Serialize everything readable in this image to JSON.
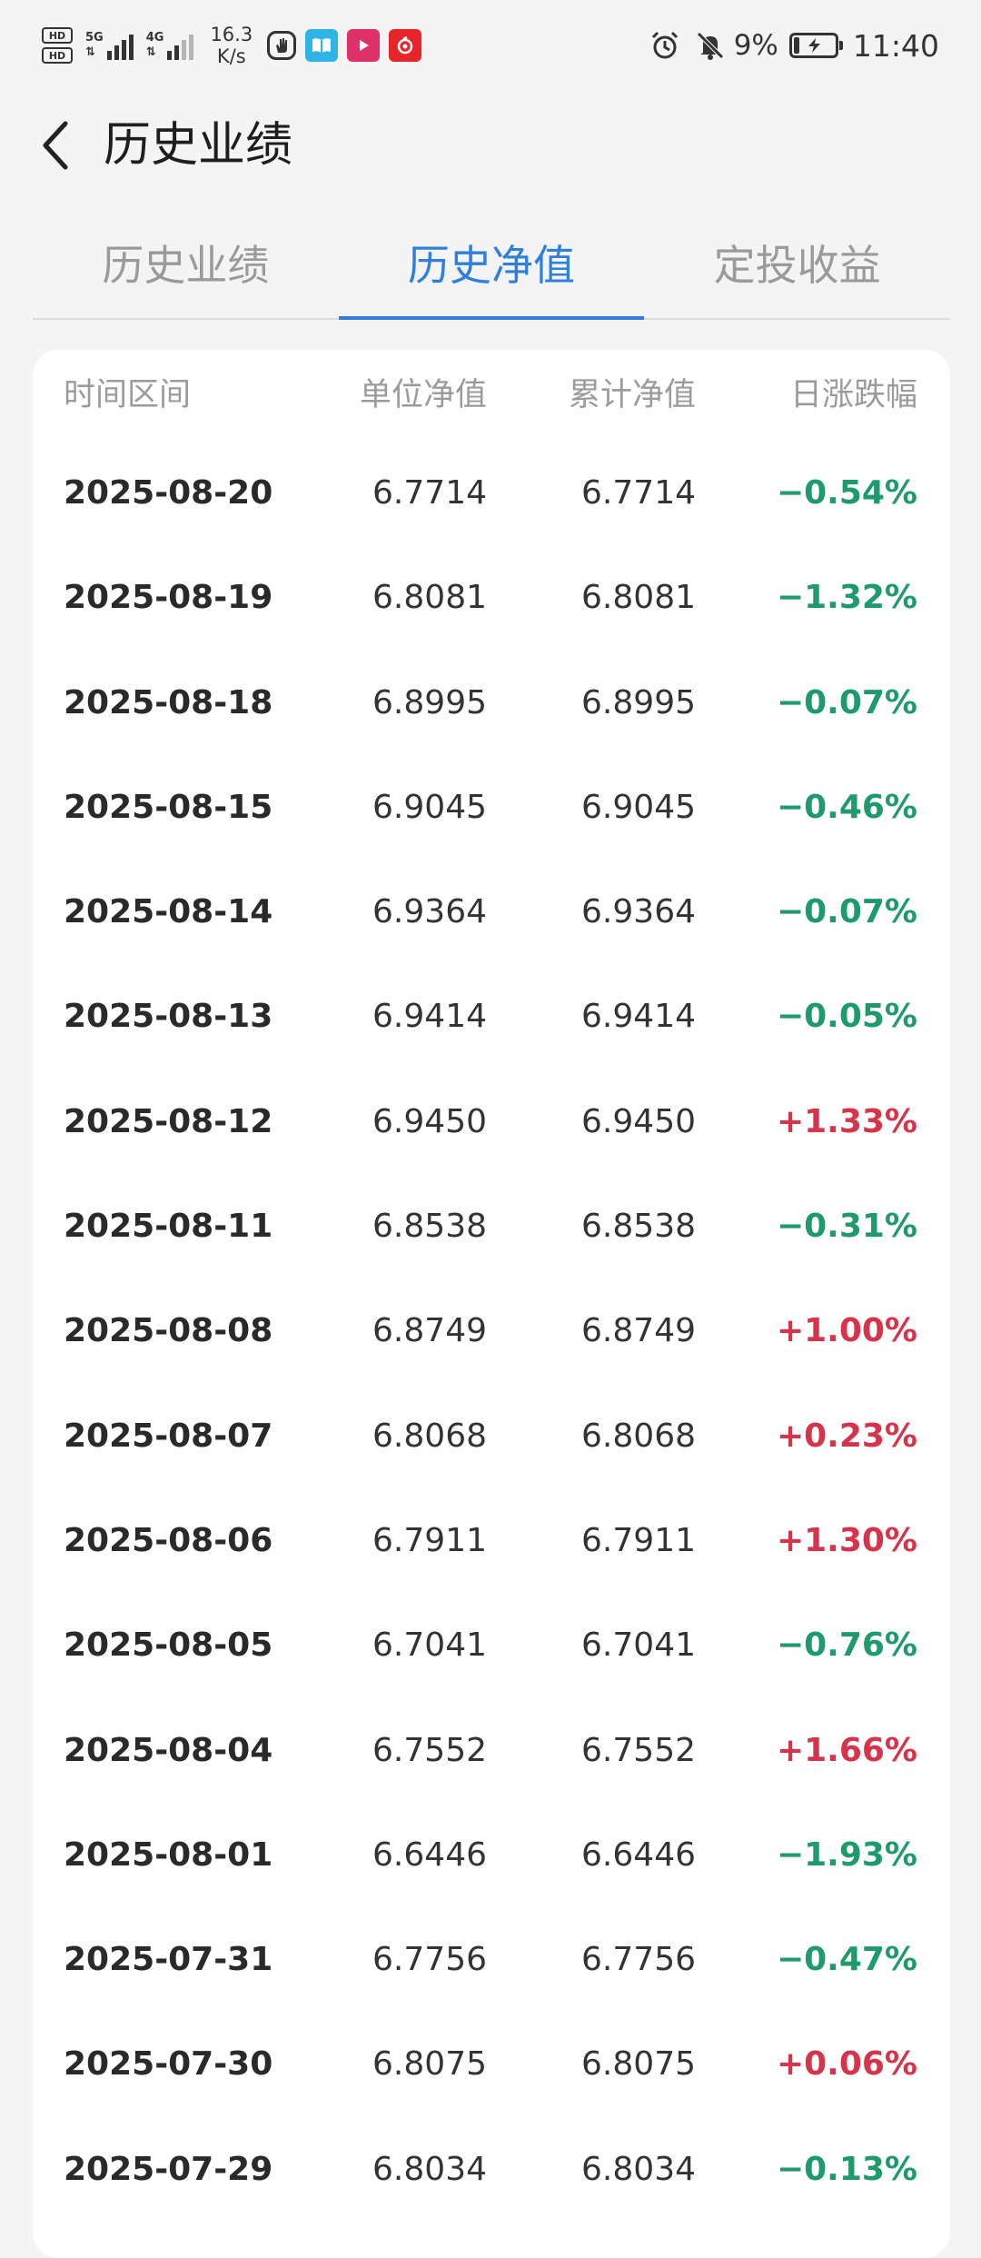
{
  "status_bar": {
    "hd1": "HD",
    "hd2": "HD",
    "net1": "5G",
    "net2": "4G",
    "speed_value": "16.3",
    "speed_unit": "K/s",
    "battery_percent": "9%",
    "time": "11:40"
  },
  "header": {
    "title": "历史业绩"
  },
  "tabs": [
    {
      "label": "历史业绩",
      "active": false
    },
    {
      "label": "历史净值",
      "active": true
    },
    {
      "label": "定投收益",
      "active": false
    }
  ],
  "table": {
    "headers": {
      "date": "时间区间",
      "unit_nav": "单位净值",
      "acc_nav": "累计净值",
      "change": "日涨跌幅"
    },
    "rows": [
      {
        "date": "2025-08-20",
        "unit": "6.7714",
        "acc": "6.7714",
        "change": "−0.54%",
        "dir": "down"
      },
      {
        "date": "2025-08-19",
        "unit": "6.8081",
        "acc": "6.8081",
        "change": "−1.32%",
        "dir": "down"
      },
      {
        "date": "2025-08-18",
        "unit": "6.8995",
        "acc": "6.8995",
        "change": "−0.07%",
        "dir": "down"
      },
      {
        "date": "2025-08-15",
        "unit": "6.9045",
        "acc": "6.9045",
        "change": "−0.46%",
        "dir": "down"
      },
      {
        "date": "2025-08-14",
        "unit": "6.9364",
        "acc": "6.9364",
        "change": "−0.07%",
        "dir": "down"
      },
      {
        "date": "2025-08-13",
        "unit": "6.9414",
        "acc": "6.9414",
        "change": "−0.05%",
        "dir": "down"
      },
      {
        "date": "2025-08-12",
        "unit": "6.9450",
        "acc": "6.9450",
        "change": "+1.33%",
        "dir": "up"
      },
      {
        "date": "2025-08-11",
        "unit": "6.8538",
        "acc": "6.8538",
        "change": "−0.31%",
        "dir": "down"
      },
      {
        "date": "2025-08-08",
        "unit": "6.8749",
        "acc": "6.8749",
        "change": "+1.00%",
        "dir": "up"
      },
      {
        "date": "2025-08-07",
        "unit": "6.8068",
        "acc": "6.8068",
        "change": "+0.23%",
        "dir": "up"
      },
      {
        "date": "2025-08-06",
        "unit": "6.7911",
        "acc": "6.7911",
        "change": "+1.30%",
        "dir": "up"
      },
      {
        "date": "2025-08-05",
        "unit": "6.7041",
        "acc": "6.7041",
        "change": "−0.76%",
        "dir": "down"
      },
      {
        "date": "2025-08-04",
        "unit": "6.7552",
        "acc": "6.7552",
        "change": "+1.66%",
        "dir": "up"
      },
      {
        "date": "2025-08-01",
        "unit": "6.6446",
        "acc": "6.6446",
        "change": "−1.93%",
        "dir": "down"
      },
      {
        "date": "2025-07-31",
        "unit": "6.7756",
        "acc": "6.7756",
        "change": "−0.47%",
        "dir": "down"
      },
      {
        "date": "2025-07-30",
        "unit": "6.8075",
        "acc": "6.8075",
        "change": "+0.06%",
        "dir": "up"
      },
      {
        "date": "2025-07-29",
        "unit": "6.8034",
        "acc": "6.8034",
        "change": "−0.13%",
        "dir": "down"
      }
    ]
  },
  "colors": {
    "accent": "#2f7fdb",
    "up": "#d6344a",
    "down": "#1f9a6d"
  },
  "icons": {
    "back": "chevron-left-icon",
    "alarm": "alarm-icon",
    "mute": "bell-off-icon",
    "battery": "battery-charging-icon"
  }
}
